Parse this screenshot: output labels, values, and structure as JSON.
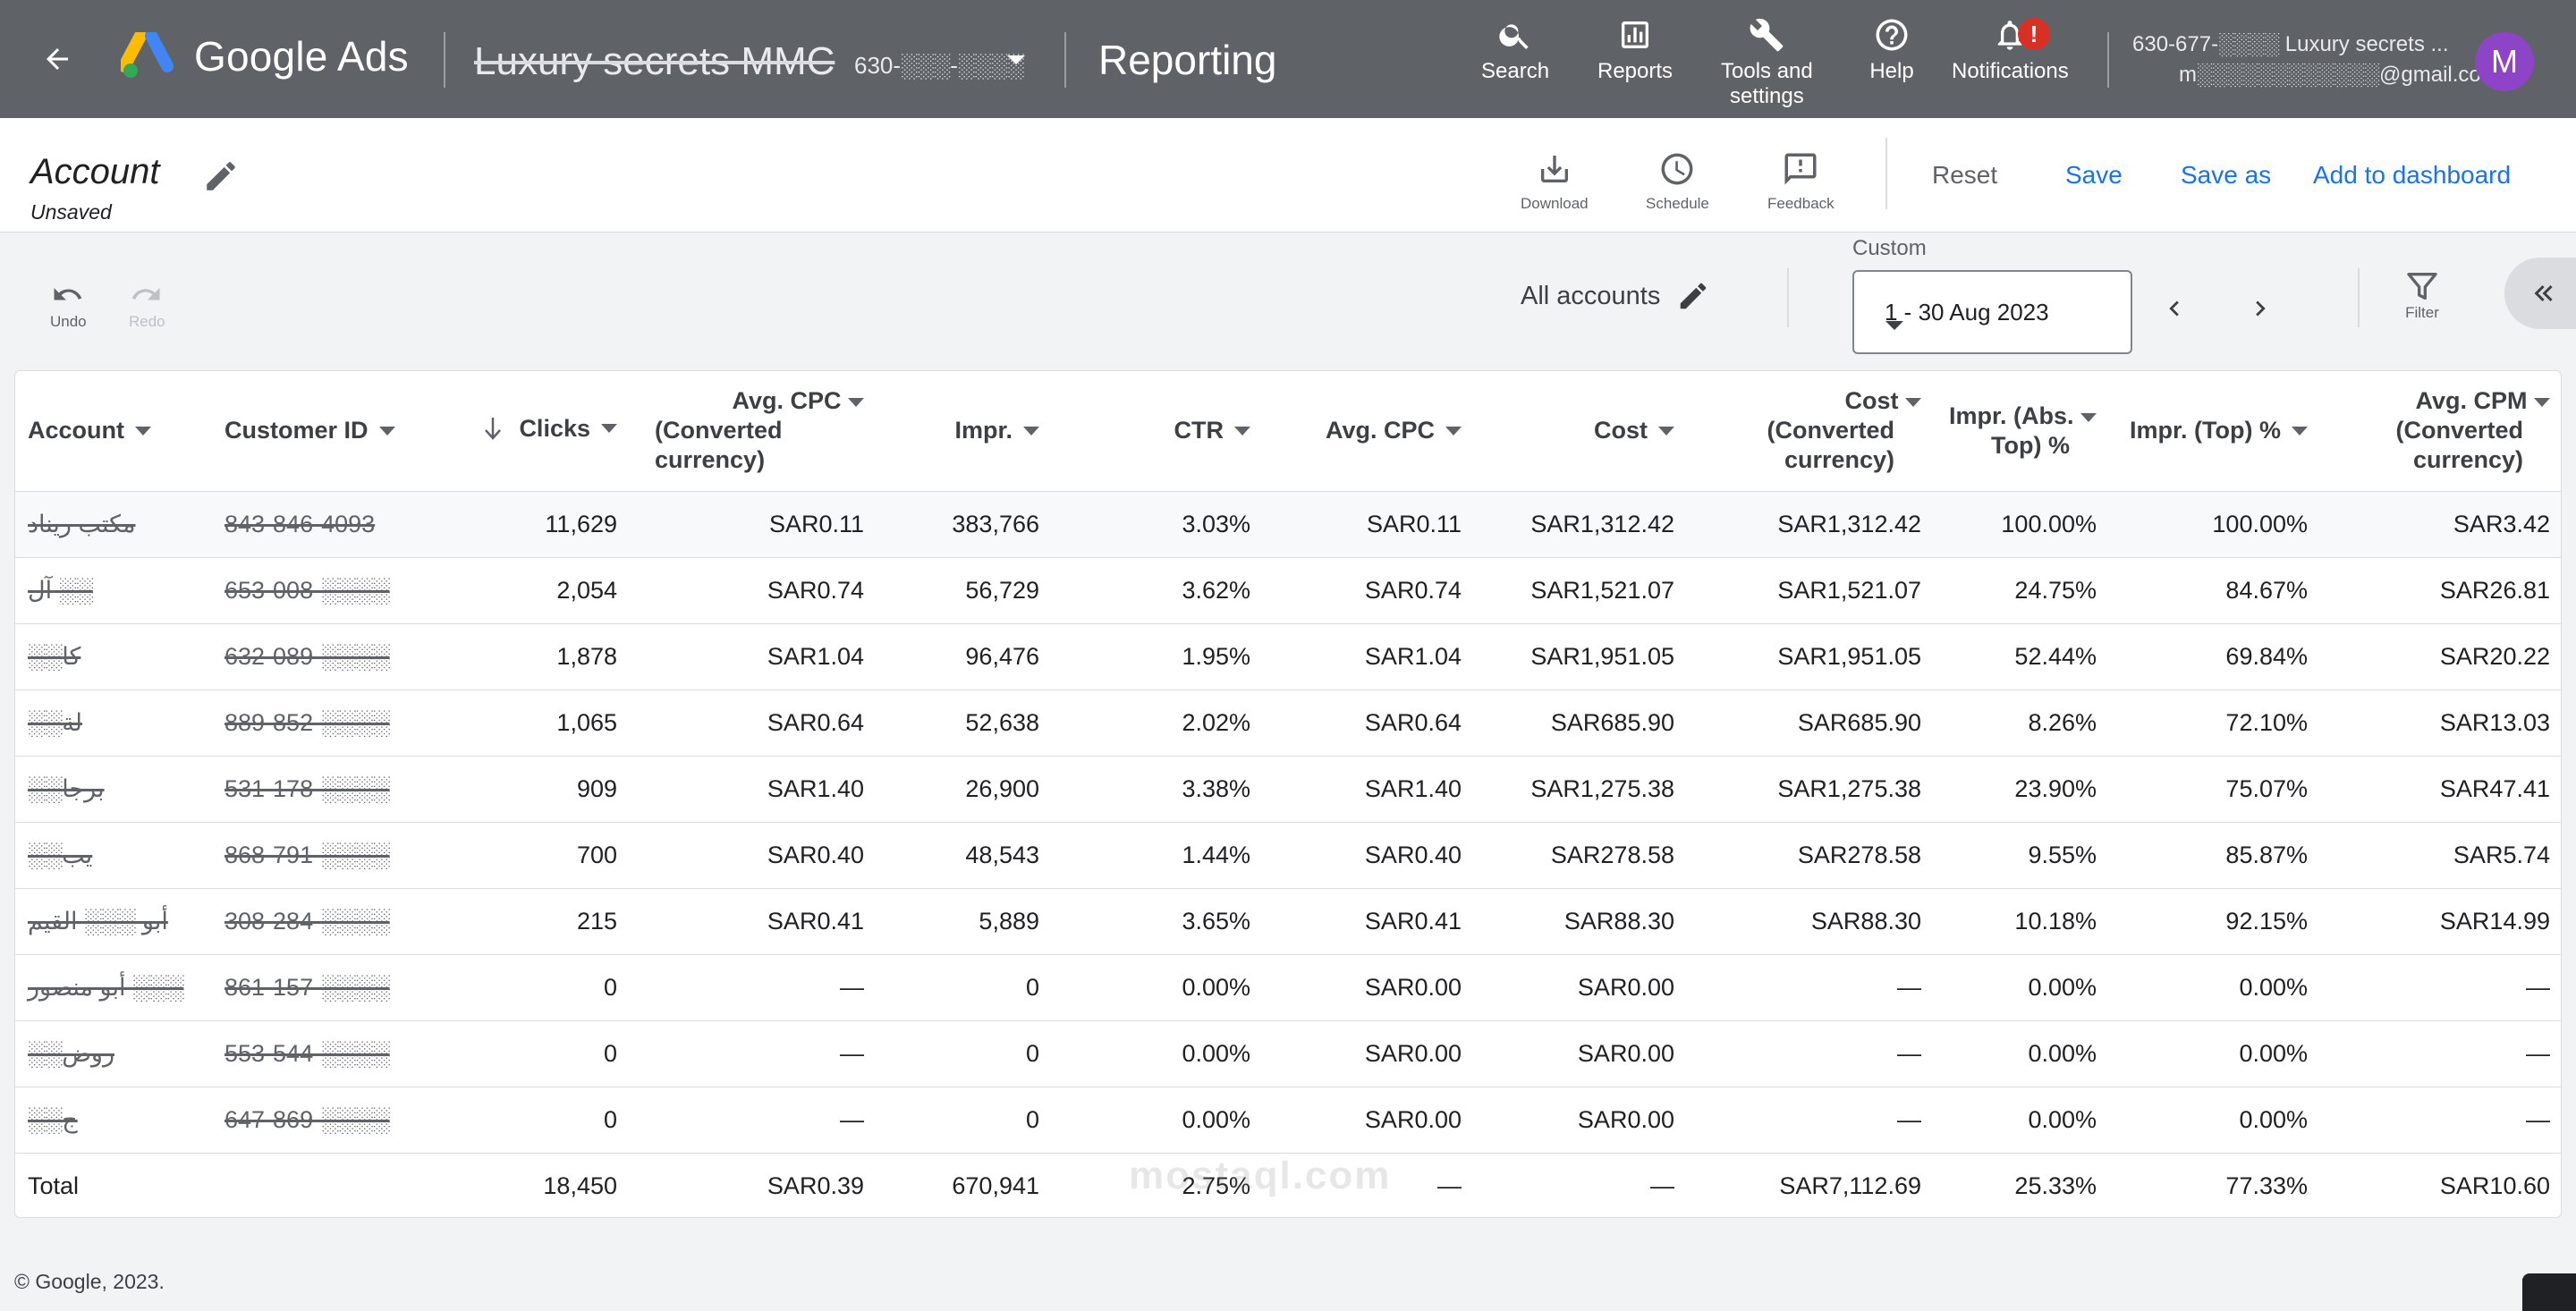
{
  "topbar": {
    "product": "Google Ads",
    "account_name": "Luxury secrets MMC",
    "account_id": "630-░░░-░░░░",
    "section": "Reporting",
    "nav": {
      "search": "Search",
      "reports": "Reports",
      "tools_line1": "Tools and",
      "tools_line2": "settings",
      "help": "Help",
      "notifications": "Notifications",
      "notif_badge": "!"
    },
    "user_line1": "630-677-░░░░ Luxury secrets ...",
    "user_line2": "m░░░░░░░░░░░░@gmail.com",
    "avatar_letter": "M"
  },
  "report": {
    "title": "Account",
    "status": "Unsaved",
    "tools": {
      "download": "Download",
      "schedule": "Schedule",
      "feedback": "Feedback"
    },
    "reset": "Reset",
    "save": "Save",
    "save_as": "Save as",
    "add_to_dashboard": "Add to dashboard"
  },
  "controls": {
    "undo": "Undo",
    "redo": "Redo",
    "scope": "All accounts",
    "date_label": "Custom",
    "date_range": "1 - 30 Aug 2023",
    "filter": "Filter"
  },
  "table": {
    "headers": {
      "account": "Account",
      "customer_id": "Customer ID",
      "clicks": "Clicks",
      "avg_cpc_conv_1": "Avg. CPC",
      "avg_cpc_conv_2": "(Converted",
      "avg_cpc_conv_3": "currency)",
      "impr": "Impr.",
      "ctr": "CTR",
      "avg_cpc": "Avg. CPC",
      "cost": "Cost",
      "cost_conv_1": "Cost",
      "cost_conv_2": "(Converted",
      "cost_conv_3": "currency)",
      "impr_abs_1": "Impr. (Abs.",
      "impr_abs_2": "Top) %",
      "impr_top": "Impr. (Top) %",
      "avg_cpm_1": "Avg. CPM",
      "avg_cpm_2": "(Converted",
      "avg_cpm_3": "currency)"
    },
    "rows": [
      [
        "مكتب ريناد",
        "843-846-4093",
        "11,629",
        "SAR0.11",
        "383,766",
        "3.03%",
        "SAR0.11",
        "SAR1,312.42",
        "SAR1,312.42",
        "100.00%",
        "100.00%",
        "SAR3.42"
      ],
      [
        "آل ░░",
        "653-008-░░░░",
        "2,054",
        "SAR0.74",
        "56,729",
        "3.62%",
        "SAR0.74",
        "SAR1,521.07",
        "SAR1,521.07",
        "24.75%",
        "84.67%",
        "SAR26.81"
      ],
      [
        "░░كا",
        "632-089-░░░░",
        "1,878",
        "SAR1.04",
        "96,476",
        "1.95%",
        "SAR1.04",
        "SAR1,951.05",
        "SAR1,951.05",
        "52.44%",
        "69.84%",
        "SAR20.22"
      ],
      [
        "░░لة",
        "889-852-░░░░",
        "1,065",
        "SAR0.64",
        "52,638",
        "2.02%",
        "SAR0.64",
        "SAR685.90",
        "SAR685.90",
        "8.26%",
        "72.10%",
        "SAR13.03"
      ],
      [
        "░░برجا",
        "531-178-░░░░",
        "909",
        "SAR1.40",
        "26,900",
        "3.38%",
        "SAR1.40",
        "SAR1,275.38",
        "SAR1,275.38",
        "23.90%",
        "75.07%",
        "SAR47.41"
      ],
      [
        "░░يب",
        "868-791-░░░░",
        "700",
        "SAR0.40",
        "48,543",
        "1.44%",
        "SAR0.40",
        "SAR278.58",
        "SAR278.58",
        "9.55%",
        "85.87%",
        "SAR5.74"
      ],
      [
        "أبو ░░░ القيم",
        "308-284-░░░░",
        "215",
        "SAR0.41",
        "5,889",
        "3.65%",
        "SAR0.41",
        "SAR88.30",
        "SAR88.30",
        "10.18%",
        "92.15%",
        "SAR14.99"
      ],
      [
        "أبو منصور ░░░",
        "861-157-░░░░",
        "0",
        "—",
        "0",
        "0.00%",
        "SAR0.00",
        "SAR0.00",
        "—",
        "0.00%",
        "0.00%",
        "—"
      ],
      [
        "░░روض",
        "553-544-░░░░",
        "0",
        "—",
        "0",
        "0.00%",
        "SAR0.00",
        "SAR0.00",
        "—",
        "0.00%",
        "0.00%",
        "—"
      ],
      [
        "░░ج",
        "647-869-░░░░",
        "0",
        "—",
        "0",
        "0.00%",
        "SAR0.00",
        "SAR0.00",
        "—",
        "0.00%",
        "0.00%",
        "—"
      ]
    ],
    "total": [
      "Total",
      "",
      "18,450",
      "SAR0.39",
      "670,941",
      "2.75%",
      "—",
      "—",
      "SAR7,112.69",
      "25.33%",
      "77.33%",
      "SAR10.60"
    ]
  },
  "footer": "© Google, 2023.",
  "watermark": "mostaql.com"
}
